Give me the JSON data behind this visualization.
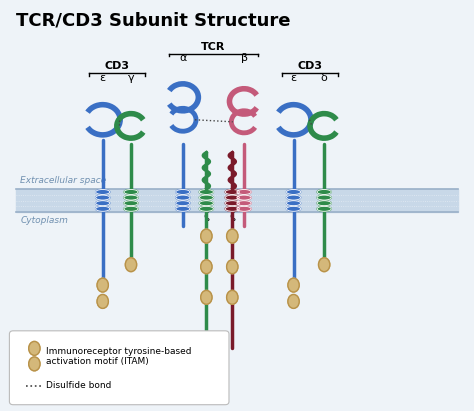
{
  "title": "TCR/CD3 Subunit Structure",
  "bg_color": "#eef3f8",
  "membrane_color": "#c8d8e8",
  "membrane_line_color": "#9ab0c8",
  "extracellular_label": "Extracellular space",
  "cytoplasm_label": "Cytoplasm",
  "label_color": "#7090b0",
  "blue_color": "#3a6fc4",
  "green_color": "#2e8b4a",
  "pink_color": "#c45a7a",
  "darkred_color": "#7a1a2a",
  "tan_color": "#d4b87a",
  "tan_outline": "#b8924a",
  "title_fontsize": 13,
  "legend_text1a": "Immunoreceptor tyrosine-based",
  "legend_text1b": "activation motif (ITAM)",
  "legend_text2": "Disulfide bond"
}
